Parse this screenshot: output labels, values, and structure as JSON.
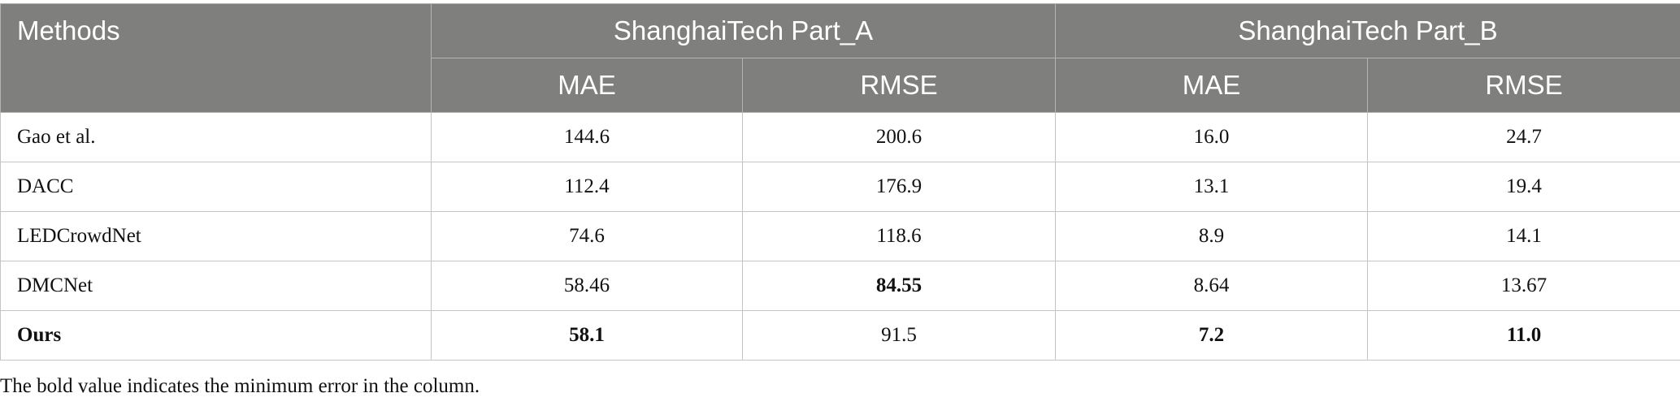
{
  "table": {
    "header": {
      "methods": "Methods",
      "group_a": "ShanghaiTech Part_A",
      "group_b": "ShanghaiTech Part_B",
      "sub": [
        "MAE",
        "RMSE",
        "MAE",
        "RMSE"
      ]
    },
    "rows": [
      [
        "Gao et al.",
        "144.6",
        "200.6",
        "16.0",
        "24.7"
      ],
      [
        "DACC",
        "112.4",
        "176.9",
        "13.1",
        "19.4"
      ],
      [
        "LEDCrowdNet",
        "74.6",
        "118.6",
        "8.9",
        "14.1"
      ],
      [
        "DMCNet",
        "58.46",
        "84.55",
        "8.64",
        "13.67"
      ],
      [
        "Ours",
        "58.1",
        "91.5",
        "7.2",
        "11.0"
      ]
    ]
  },
  "footnote": "The bold value indicates the minimum error in the column."
}
